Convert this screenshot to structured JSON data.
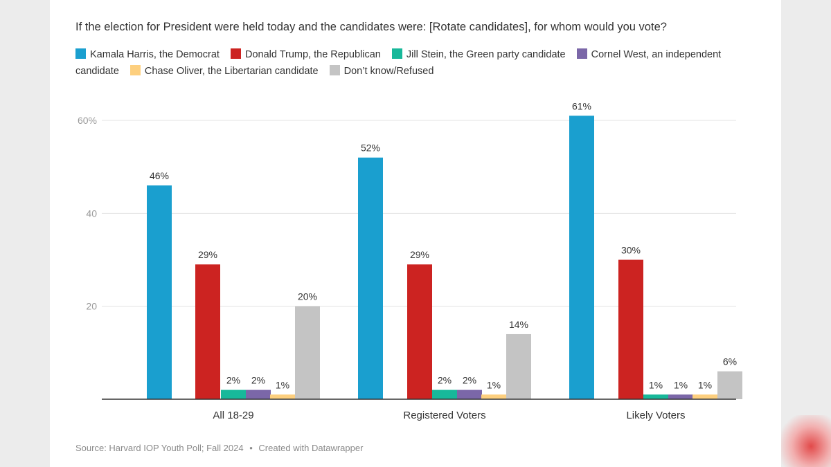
{
  "question": "If the election for President were held today and the candidates were: [Rotate candidates], for whom would you vote?",
  "legend": [
    {
      "label": "Kamala Harris, the Democrat",
      "color": "#1a9fcf"
    },
    {
      "label": "Donald Trump, the Republican",
      "color": "#cc2321"
    },
    {
      "label": "Jill Stein, the Green party candidate",
      "color": "#18b89a"
    },
    {
      "label": "Cornel West, an independent candidate",
      "color": "#7b67a8"
    },
    {
      "label": "Chase Oliver, the Libertarian candidate",
      "color": "#fdcf7e"
    },
    {
      "label": "Don’t know/Refused",
      "color": "#c4c4c4"
    }
  ],
  "source": {
    "text": "Source: Harvard IOP Youth Poll; Fall 2024",
    "separator": "•",
    "credit": "Created with Datawrapper"
  },
  "chart_data": {
    "type": "bar",
    "categories": [
      "All 18-29",
      "Registered Voters",
      "Likely Voters"
    ],
    "series": [
      {
        "name": "Kamala Harris, the Democrat",
        "values": [
          46,
          52,
          61
        ],
        "labels": [
          "46%",
          "52%",
          "61%"
        ]
      },
      {
        "name": "Donald Trump, the Republican",
        "values": [
          29,
          29,
          30
        ],
        "labels": [
          "29%",
          "29%",
          "30%"
        ]
      },
      {
        "name": "Jill Stein, the Green party candidate",
        "values": [
          2,
          2,
          1
        ],
        "labels": [
          "2%",
          "2%",
          "1%"
        ]
      },
      {
        "name": "Cornel West, an independent candidate",
        "values": [
          2,
          2,
          1
        ],
        "labels": [
          "2%",
          "2%",
          "1%"
        ]
      },
      {
        "name": "Chase Oliver, the Libertarian candidate",
        "values": [
          1,
          1,
          1
        ],
        "labels": [
          "1%",
          "1%",
          "1%"
        ]
      },
      {
        "name": "Don’t know/Refused",
        "values": [
          20,
          14,
          6
        ],
        "labels": [
          "20%",
          "14%",
          "6%"
        ]
      }
    ],
    "yticks": [
      {
        "value": 60,
        "label": "60%"
      },
      {
        "value": 40,
        "label": "40"
      },
      {
        "value": 20,
        "label": "20"
      }
    ],
    "ylim": [
      0,
      60
    ],
    "grid": true,
    "legend_position": "top"
  }
}
